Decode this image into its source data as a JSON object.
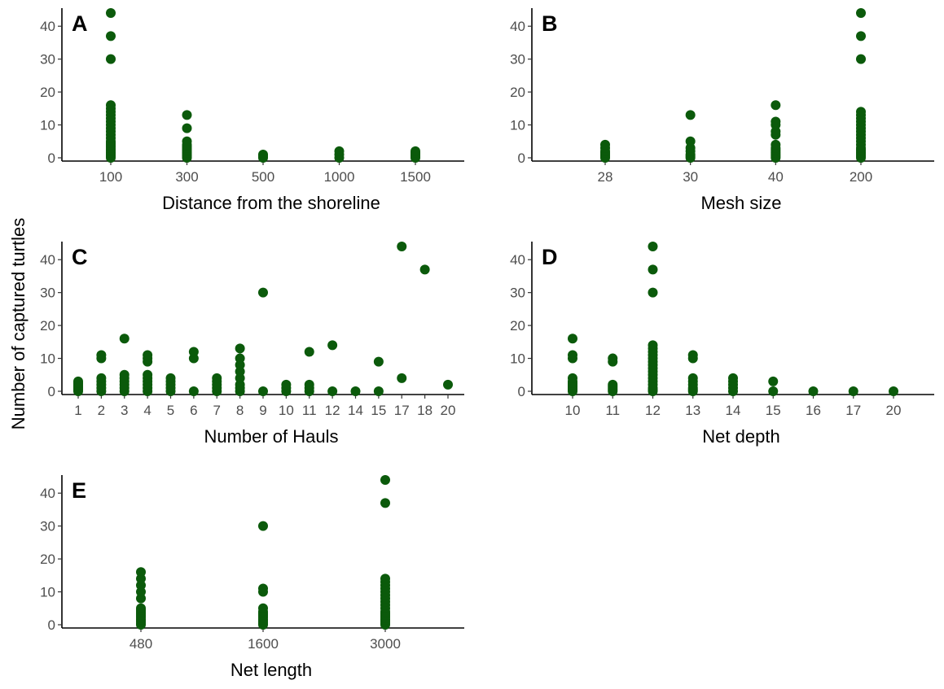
{
  "figure": {
    "ylabel": "Number of captured turtles",
    "point_color": "#0b5a0b"
  },
  "chart_data": [
    {
      "panel": "A",
      "type": "scatter",
      "xlabel": "Distance from the shoreline",
      "x_scale": "categorical",
      "categories": [
        "100",
        "300",
        "500",
        "1000",
        "1500"
      ],
      "ylim": [
        0,
        45
      ],
      "yticks": [
        0,
        10,
        20,
        30,
        40
      ],
      "points": {
        "100": [
          0,
          0.5,
          1,
          1.5,
          2,
          2.5,
          3,
          3.5,
          4,
          4.5,
          5,
          6,
          7,
          8,
          9,
          10,
          11,
          12,
          13,
          14,
          15,
          16,
          30,
          37,
          44
        ],
        "300": [
          0,
          0.5,
          1,
          1.5,
          2,
          2.5,
          3,
          3.5,
          4,
          5,
          9,
          13
        ],
        "500": [
          0,
          0.5,
          1
        ],
        "1000": [
          0,
          1,
          2
        ],
        "1500": [
          0,
          0.5,
          1,
          1.5,
          2
        ]
      }
    },
    {
      "panel": "B",
      "type": "scatter",
      "xlabel": "Mesh size",
      "x_scale": "categorical",
      "categories": [
        "28",
        "30",
        "40",
        "200"
      ],
      "ylim": [
        0,
        45
      ],
      "yticks": [
        0,
        10,
        20,
        30,
        40
      ],
      "points": {
        "28": [
          0,
          0.5,
          1,
          1.5,
          2,
          3,
          4
        ],
        "30": [
          0,
          0.5,
          1,
          2,
          3,
          5,
          13
        ],
        "40": [
          0,
          0.5,
          1,
          1.5,
          2,
          2.5,
          3,
          4,
          7,
          8,
          10,
          11,
          16
        ],
        "200": [
          0,
          0.5,
          1,
          1.5,
          2,
          2.5,
          3,
          4,
          5,
          6,
          7,
          8,
          9,
          10,
          11,
          12,
          13,
          14,
          30,
          37,
          44
        ]
      }
    },
    {
      "panel": "C",
      "type": "scatter",
      "xlabel": "Number of Hauls",
      "x_scale": "categorical",
      "categories": [
        "1",
        "2",
        "3",
        "4",
        "5",
        "6",
        "7",
        "8",
        "9",
        "10",
        "11",
        "12",
        "14",
        "15",
        "17",
        "18",
        "20"
      ],
      "ylim": [
        0,
        45
      ],
      "yticks": [
        0,
        10,
        20,
        30,
        40
      ],
      "points": {
        "1": [
          0,
          0.5,
          1,
          1.5,
          2,
          2.5,
          3
        ],
        "2": [
          0,
          1,
          2,
          3,
          4,
          10,
          11
        ],
        "3": [
          0,
          1,
          2,
          3,
          4,
          5,
          16
        ],
        "4": [
          0,
          1,
          2,
          3,
          4,
          5,
          9,
          10,
          11
        ],
        "5": [
          0,
          1,
          2,
          3,
          4
        ],
        "6": [
          0,
          10,
          12
        ],
        "7": [
          0,
          1,
          2,
          3,
          4
        ],
        "8": [
          0,
          1,
          2,
          4,
          6,
          8,
          10,
          13
        ],
        "9": [
          0,
          30
        ],
        "10": [
          0,
          1,
          2
        ],
        "11": [
          0,
          1,
          2,
          12
        ],
        "12": [
          0,
          14
        ],
        "14": [
          0
        ],
        "15": [
          0,
          9
        ],
        "17": [
          4,
          44
        ],
        "18": [
          37
        ],
        "20": [
          2
        ]
      }
    },
    {
      "panel": "D",
      "type": "scatter",
      "xlabel": "Net depth",
      "x_scale": "categorical",
      "categories": [
        "10",
        "11",
        "12",
        "13",
        "14",
        "15",
        "16",
        "17",
        "20"
      ],
      "ylim": [
        0,
        45
      ],
      "yticks": [
        0,
        10,
        20,
        30,
        40
      ],
      "points": {
        "10": [
          0,
          0.5,
          1,
          1.5,
          2,
          2.5,
          3,
          4,
          10,
          11,
          16
        ],
        "11": [
          0,
          0.5,
          1,
          1.5,
          2,
          9,
          10
        ],
        "12": [
          0,
          0.5,
          1,
          2,
          3,
          4,
          5,
          6,
          7,
          8,
          9,
          10,
          11,
          12,
          13,
          14,
          30,
          37,
          44
        ],
        "13": [
          0,
          0.5,
          1,
          2,
          3,
          4,
          10,
          11
        ],
        "14": [
          0,
          1,
          2,
          3,
          4
        ],
        "15": [
          0,
          3
        ],
        "16": [
          0
        ],
        "17": [
          0
        ],
        "20": [
          0
        ]
      }
    },
    {
      "panel": "E",
      "type": "scatter",
      "xlabel": "Net length",
      "x_scale": "categorical",
      "categories": [
        "480",
        "1600",
        "3000"
      ],
      "ylim": [
        0,
        45
      ],
      "yticks": [
        0,
        10,
        20,
        30,
        40
      ],
      "points": {
        "480": [
          0,
          0.5,
          1,
          1.5,
          2,
          2.5,
          3,
          3.5,
          4,
          4.5,
          5,
          8,
          10,
          12,
          14,
          16
        ],
        "1600": [
          0,
          0.5,
          1,
          1.5,
          2,
          2.5,
          3,
          3.5,
          4,
          5,
          10,
          11,
          30
        ],
        "3000": [
          0,
          0.5,
          1,
          1.5,
          2,
          2.5,
          3,
          3.5,
          4,
          5,
          6,
          7,
          8,
          9,
          10,
          11,
          12,
          13,
          14,
          37,
          44
        ]
      }
    }
  ]
}
